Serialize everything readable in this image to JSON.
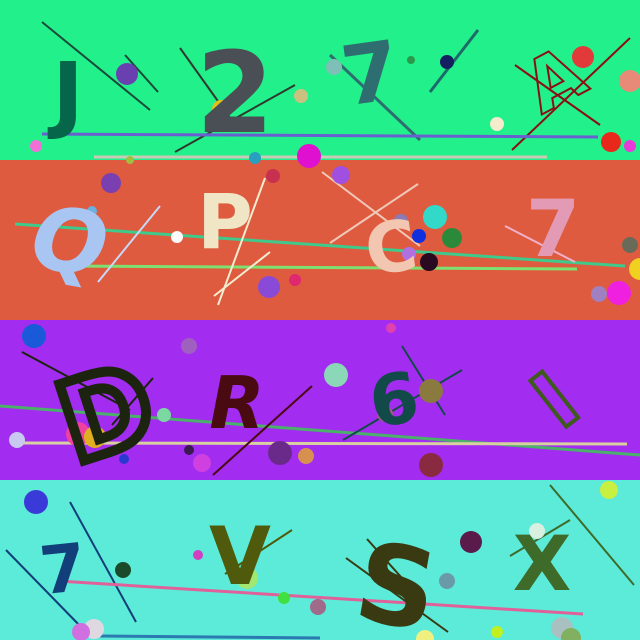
{
  "captcha": {
    "rows": [
      {
        "background": "#22f08a",
        "characters": [
          {
            "text": "J",
            "color": "#05664a"
          },
          {
            "text": "2",
            "color": "#4a4f55"
          },
          {
            "text": "7",
            "color": "#2e6e70"
          },
          {
            "text": "A",
            "color": "#8a0f12"
          }
        ]
      },
      {
        "background": "#de5b3f",
        "characters": [
          {
            "text": "Q",
            "color": "#a9c5f2"
          },
          {
            "text": "P",
            "color": "#f0e6c5"
          },
          {
            "text": "C",
            "color": "#f2c6b0"
          },
          {
            "text": "7",
            "color": "#e39bb5"
          }
        ]
      },
      {
        "background": "#a22cf0",
        "characters": [
          {
            "text": "D",
            "color": "#1c2410"
          },
          {
            "text": "R",
            "color": "#4a0a12"
          },
          {
            "text": "6",
            "color": "#124a4a"
          },
          {
            "text": "I",
            "color": "#3e5a1c"
          }
        ]
      },
      {
        "background": "#5cebd8",
        "characters": [
          {
            "text": "7",
            "color": "#123f7a"
          },
          {
            "text": "V",
            "color": "#4f5a0c"
          },
          {
            "text": "S",
            "color": "#3a3a12"
          },
          {
            "text": "X",
            "color": "#3e6a2a"
          }
        ]
      }
    ]
  }
}
